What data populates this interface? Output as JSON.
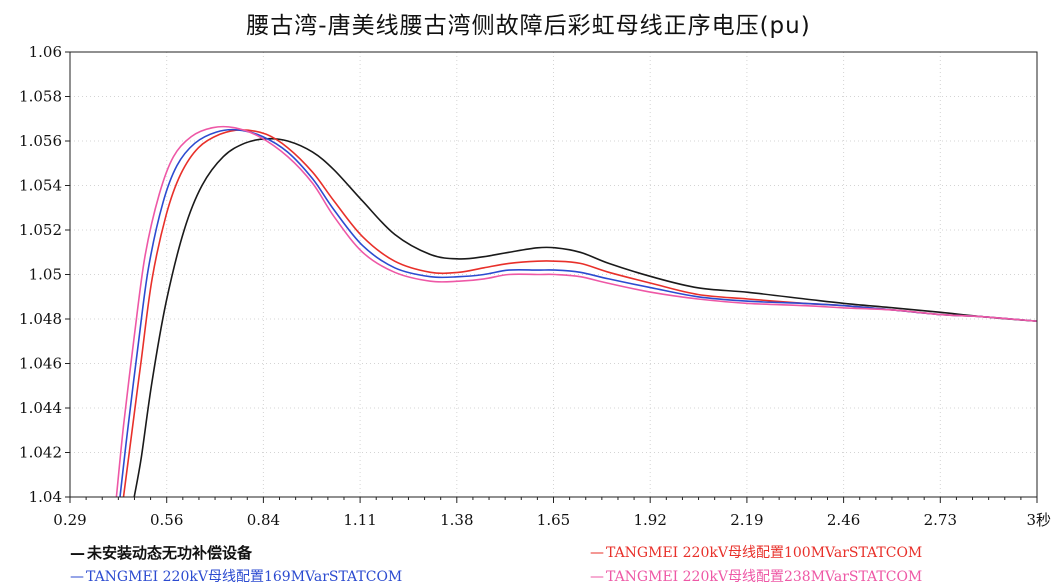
{
  "chart_data": {
    "type": "line",
    "title": "腰古湾-唐美线腰古湾侧故障后彩虹母线正序电压(pu)",
    "xlabel": "",
    "ylabel": "",
    "xlim": [
      0.29,
      3.0
    ],
    "ylim": [
      1.04,
      1.06
    ],
    "x_ticks": [
      "0.29",
      "0.56",
      "0.84",
      "1.11",
      "1.38",
      "1.65",
      "1.92",
      "2.19",
      "2.46",
      "2.73",
      "3秒"
    ],
    "y_ticks": [
      "1.04",
      "1.042",
      "1.044",
      "1.046",
      "1.048",
      "1.05",
      "1.052",
      "1.054",
      "1.056",
      "1.058",
      "1.06"
    ],
    "grid": true,
    "legend_position": "bottom",
    "series": [
      {
        "name": "未安装动态无功补偿设备",
        "color": "#1a1a1a",
        "x": [
          0.47,
          0.49,
          0.52,
          0.56,
          0.61,
          0.66,
          0.72,
          0.78,
          0.84,
          0.9,
          0.97,
          1.03,
          1.11,
          1.2,
          1.3,
          1.38,
          1.45,
          1.52,
          1.6,
          1.65,
          1.72,
          1.8,
          1.92,
          2.05,
          2.19,
          2.35,
          2.46,
          2.6,
          2.73,
          2.85,
          3.0
        ],
        "values": [
          1.04,
          1.0418,
          1.0452,
          1.0488,
          1.052,
          1.054,
          1.0553,
          1.0559,
          1.0561,
          1.056,
          1.0555,
          1.0547,
          1.0533,
          1.0518,
          1.0509,
          1.0507,
          1.0508,
          1.051,
          1.0512,
          1.0512,
          1.051,
          1.0505,
          1.0499,
          1.0494,
          1.0492,
          1.0489,
          1.0487,
          1.0485,
          1.0483,
          1.0481,
          1.0479
        ]
      },
      {
        "name": "TANGMEI 220kV母线配置100MVarSTATCOM",
        "color": "#e8302a",
        "x": [
          0.44,
          0.46,
          0.49,
          0.52,
          0.56,
          0.6,
          0.65,
          0.71,
          0.77,
          0.84,
          0.9,
          0.97,
          1.03,
          1.11,
          1.2,
          1.3,
          1.38,
          1.45,
          1.52,
          1.6,
          1.65,
          1.72,
          1.8,
          1.92,
          2.05,
          2.19,
          2.35,
          2.46,
          2.6,
          2.73,
          2.85,
          3.0
        ],
        "values": [
          1.04,
          1.0425,
          1.0462,
          1.0498,
          1.0527,
          1.0545,
          1.0557,
          1.0563,
          1.0565,
          1.0563,
          1.0557,
          1.0546,
          1.0533,
          1.0517,
          1.0506,
          1.0501,
          1.0501,
          1.0503,
          1.0505,
          1.0506,
          1.0506,
          1.0505,
          1.0501,
          1.0496,
          1.0491,
          1.0489,
          1.0487,
          1.0486,
          1.0484,
          1.0482,
          1.0481,
          1.0479
        ]
      },
      {
        "name": "TANGMEI 220kV母线配置169MVarSTATCOM",
        "color": "#2c4bd0",
        "x": [
          0.43,
          0.45,
          0.48,
          0.51,
          0.55,
          0.59,
          0.64,
          0.7,
          0.76,
          0.83,
          0.9,
          0.97,
          1.03,
          1.11,
          1.2,
          1.3,
          1.38,
          1.45,
          1.52,
          1.6,
          1.65,
          1.72,
          1.8,
          1.92,
          2.05,
          2.19,
          2.35,
          2.46,
          2.6,
          2.73,
          2.85,
          3.0
        ],
        "values": [
          1.04,
          1.0428,
          1.0467,
          1.0503,
          1.0532,
          1.0549,
          1.0559,
          1.0564,
          1.0565,
          1.0562,
          1.0555,
          1.0543,
          1.0529,
          1.0513,
          1.0503,
          1.0499,
          1.0499,
          1.05,
          1.0502,
          1.0502,
          1.0502,
          1.0501,
          1.0498,
          1.0494,
          1.049,
          1.0488,
          1.0487,
          1.0486,
          1.0484,
          1.0482,
          1.0481,
          1.0479
        ]
      },
      {
        "name": "TANGMEI 220kV母线配置238MVarSTATCOM",
        "color": "#ee58a6",
        "x": [
          0.42,
          0.44,
          0.47,
          0.5,
          0.54,
          0.58,
          0.63,
          0.69,
          0.75,
          0.82,
          0.9,
          0.97,
          1.03,
          1.11,
          1.2,
          1.3,
          1.38,
          1.45,
          1.52,
          1.6,
          1.65,
          1.72,
          1.8,
          1.92,
          2.05,
          2.19,
          2.35,
          2.46,
          2.6,
          2.73,
          2.85,
          3.0
        ],
        "values": [
          1.04,
          1.0432,
          1.0472,
          1.0508,
          1.0536,
          1.0553,
          1.0562,
          1.0566,
          1.0566,
          1.0562,
          1.0553,
          1.0541,
          1.0526,
          1.051,
          1.0501,
          1.0497,
          1.0497,
          1.0498,
          1.05,
          1.05,
          1.05,
          1.0499,
          1.0496,
          1.0492,
          1.0489,
          1.0487,
          1.0486,
          1.0485,
          1.0484,
          1.0482,
          1.0481,
          1.0479
        ]
      }
    ]
  }
}
